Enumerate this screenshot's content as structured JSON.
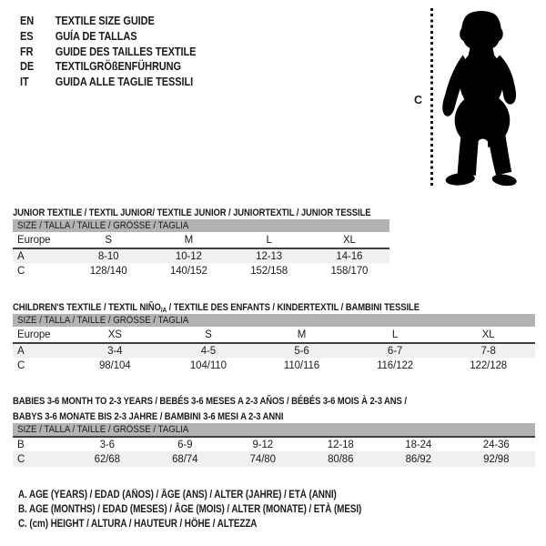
{
  "header": {
    "languages": [
      {
        "code": "EN",
        "label": "TEXTILE SIZE GUIDE"
      },
      {
        "code": "ES",
        "label": "GUÍA DE TALLAS"
      },
      {
        "code": "FR",
        "label": "GUIDE DES TAILLES TEXTILE"
      },
      {
        "code": "DE",
        "label": "TEXTILGRÖßENFÜHRUNG"
      },
      {
        "code": "IT",
        "label": "GUIDA ALLE TAGLIE TESSILI"
      }
    ]
  },
  "figure": {
    "label": "C",
    "icon": "baby-silhouette-icon"
  },
  "tables": [
    {
      "id": "junior",
      "title_lines": [
        [
          {
            "text": "JUNIOR TEXTILE / TEXTIL JUNIOR/ TEXTILE JUNIOR / JUNIORTEXTIL / JUNIOR TESSILE",
            "sub": false
          }
        ]
      ],
      "size_header": "SIZE / TALLA / TAILLE / GRÖSSE / TAGLIA",
      "rows": [
        {
          "label": "Europe",
          "cells": [
            "S",
            "M",
            "L",
            "XL"
          ],
          "shaded": false,
          "topline": false
        },
        {
          "label": "A",
          "cells": [
            "8-10",
            "10-12",
            "12-13",
            "14-16"
          ],
          "shaded": true,
          "topline": true
        },
        {
          "label": "C",
          "cells": [
            "128/140",
            "140/152",
            "152/158",
            "158/170"
          ],
          "shaded": false,
          "topline": false
        }
      ]
    },
    {
      "id": "children",
      "title_lines": [
        [
          {
            "text": "CHILDREN'S TEXTILE / TEXTIL NIÑO",
            "sub": false
          },
          {
            "text": "/A",
            "sub": true
          },
          {
            "text": " / TEXTILE DES ENFANTS / KINDERTEXTIL / BAMBINI TESSILE",
            "sub": false
          }
        ]
      ],
      "size_header": "SIZE / TALLA / TAILLE / GRÖSSE / TAGLIA",
      "rows": [
        {
          "label": "Europe",
          "cells": [
            "XS",
            "S",
            "M",
            "L",
            "XL"
          ],
          "shaded": false,
          "topline": false
        },
        {
          "label": "A",
          "cells": [
            "3-4",
            "4-5",
            "5-6",
            "6-7",
            "7-8"
          ],
          "shaded": true,
          "topline": true
        },
        {
          "label": "C",
          "cells": [
            "98/104",
            "104/110",
            "110/116",
            "116/122",
            "122/128"
          ],
          "shaded": false,
          "topline": false
        }
      ]
    },
    {
      "id": "babies",
      "title_lines": [
        [
          {
            "text": "BABIES 3-6 MONTH TO 2-3 YEARS / BEBÉS 3-6 MESES A 2-3 AÑOS / BÉBÉS 3-6 MOIS À 2-3 ANS /",
            "sub": false
          }
        ],
        [
          {
            "text": "BABYS 3-6 MONATE BIS 2-3 JAHRE / BAMBINI 3-6 MESI A 2-3 ANNI",
            "sub": false
          }
        ]
      ],
      "size_header": "SIZE / TALLA / TAILLE / GRÖSSE / TAGLIA",
      "rows": [
        {
          "label": "B",
          "cells": [
            "3-6",
            "6-9",
            "9-12",
            "12-18",
            "18-24",
            "24-36"
          ],
          "shaded": false,
          "topline": true
        },
        {
          "label": "C",
          "cells": [
            "62/68",
            "68/74",
            "74/80",
            "80/86",
            "86/92",
            "92/98"
          ],
          "shaded": true,
          "topline": false
        }
      ]
    }
  ],
  "footnotes": [
    "A. AGE (YEARS) / EDAD (AÑOS) / ÂGE (ANS) / ALTER (JAHRE) / ETÀ (ANNI)",
    "B. AGE (MONTHS) / EDAD (MESES) / ÂGE (MOIS) / ALTER (MONATE) / ETÀ (MESI)",
    "C. (cm) HEIGHT / ALTURA / HAUTEUR / HÖHE / ALTEZZA"
  ],
  "colors": {
    "band_gray": "#b3b3b3",
    "row_shade": "#f0f0f0",
    "rule_dark": "#3f3f3f",
    "text": "#1b1b1b",
    "silhouette": "#000000"
  }
}
